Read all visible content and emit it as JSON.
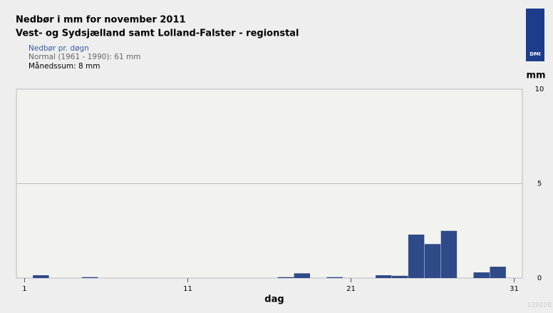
{
  "chart_data": {
    "type": "bar",
    "title": "Nedbør i mm for november 2011",
    "subtitle": "Vest- og Sydsjælland samt Lolland-Falster - regionstal",
    "notes": [
      "Normal (1961 - 1990): 61 mm",
      "Månedssum: 8 mm"
    ],
    "logo": "DMI",
    "watermark": "120228",
    "xlabel": "dag",
    "ylabel": "mm",
    "x": [
      1,
      2,
      3,
      4,
      5,
      6,
      7,
      8,
      9,
      10,
      11,
      12,
      13,
      14,
      15,
      16,
      17,
      18,
      19,
      20,
      21,
      22,
      23,
      24,
      25,
      26,
      27,
      28,
      29,
      30
    ],
    "series": [
      {
        "name": "Nedbør pr. døgn",
        "color": "#2f4a88",
        "values": [
          0,
          0.15,
          0,
          0,
          0.05,
          0,
          0,
          0,
          0,
          0,
          0,
          0,
          0,
          0,
          0,
          0,
          0.05,
          0.25,
          0,
          0.05,
          0,
          0,
          0.15,
          0.12,
          2.3,
          1.8,
          2.5,
          0,
          0.3,
          0.6
        ]
      }
    ],
    "xlim": [
      0.5,
      31.5
    ],
    "xticks": [
      1,
      11,
      21,
      31
    ],
    "ylim": [
      0,
      10
    ],
    "yticks": [
      0,
      5,
      10
    ],
    "grid": true
  }
}
